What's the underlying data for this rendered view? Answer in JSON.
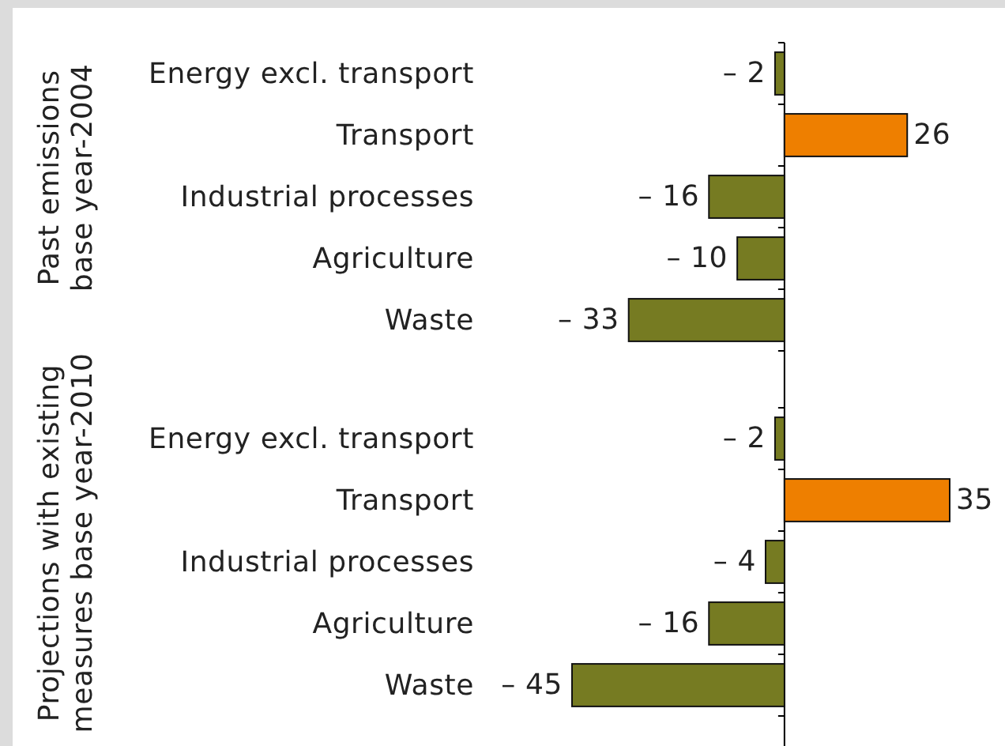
{
  "chart_data": [
    {
      "type": "bar",
      "orientation": "horizontal",
      "ylabel": "Past emissions\nbase year-2004",
      "categories": [
        "Energy excl. transport",
        "Transport",
        "Industrial processes",
        "Agriculture",
        "Waste"
      ],
      "values": [
        -2,
        26,
        -16,
        -10,
        -33
      ],
      "colors": [
        "#767b22",
        "#ee7f00",
        "#767b22",
        "#767b22",
        "#767b22"
      ],
      "value_labels": [
        "– 2",
        "26",
        "– 16",
        "– 10",
        "– 33"
      ]
    },
    {
      "type": "bar",
      "orientation": "horizontal",
      "ylabel": "Projections with existing\nmeasures base year-2010",
      "categories": [
        "Energy excl. transport",
        "Transport",
        "Industrial processes",
        "Agriculture",
        "Waste"
      ],
      "values": [
        -2,
        35,
        -4,
        -16,
        -45
      ],
      "colors": [
        "#767b22",
        "#ee7f00",
        "#767b22",
        "#767b22",
        "#767b22"
      ],
      "value_labels": [
        "– 2",
        "35",
        "– 4",
        "– 16",
        "– 45"
      ]
    }
  ]
}
